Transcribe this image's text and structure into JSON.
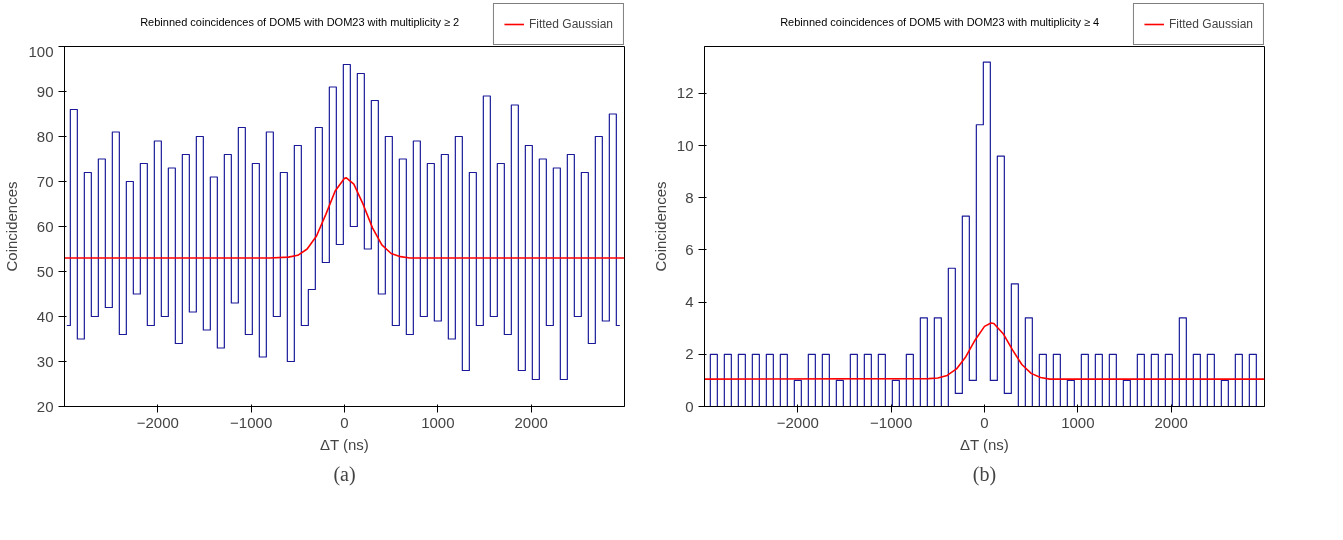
{
  "chart_data": [
    {
      "type": "step",
      "title": "Rebinned coincidences of DOM5 with DOM23 with multiplicity ≥ 2",
      "xlabel": "ΔT (ns)",
      "ylabel": "Coincidences",
      "annotations": [
        "(a)"
      ],
      "xlim": [
        -3000,
        3000
      ],
      "xticks": [
        -2000,
        -1000,
        0,
        1000,
        2000
      ],
      "ylim": [
        20,
        100
      ],
      "yticks": [
        20,
        30,
        40,
        50,
        60,
        70,
        80,
        90,
        100
      ],
      "grid": false,
      "legend": "top right",
      "series": [
        {
          "color": "#1a1a99",
          "x": [
            -2975,
            -2900,
            -2825,
            -2750,
            -2675,
            -2600,
            -2525,
            -2450,
            -2375,
            -2300,
            -2225,
            -2150,
            -2075,
            -2000,
            -1925,
            -1850,
            -1775,
            -1700,
            -1625,
            -1550,
            -1475,
            -1400,
            -1325,
            -1250,
            -1175,
            -1100,
            -1025,
            -950,
            -875,
            -800,
            -725,
            -650,
            -575,
            -500,
            -425,
            -350,
            -275,
            -200,
            -125,
            -50,
            25,
            100,
            175,
            250,
            325,
            400,
            475,
            550,
            625,
            700,
            775,
            850,
            925,
            1000,
            1075,
            1150,
            1225,
            1300,
            1375,
            1450,
            1525,
            1600,
            1675,
            1750,
            1825,
            1900,
            1975,
            2050,
            2125,
            2200,
            2275,
            2350,
            2425,
            2500,
            2575,
            2650,
            2725,
            2800,
            2875,
            2950
          ],
          "values": [
            38,
            86,
            35,
            72,
            40,
            75,
            42,
            81,
            36,
            70,
            45,
            74,
            38,
            79,
            40,
            73,
            34,
            76,
            41,
            80,
            37,
            71,
            33,
            76,
            43,
            82,
            36,
            74,
            31,
            81,
            40,
            72,
            30,
            78,
            38,
            46,
            82,
            52,
            91,
            56,
            96,
            60,
            94,
            55,
            88,
            45,
            80,
            38,
            75,
            36,
            79,
            40,
            74,
            39,
            76,
            35,
            80,
            28,
            72,
            38,
            89,
            40,
            74,
            36,
            87,
            28,
            78,
            26,
            75,
            38,
            73,
            26,
            76,
            40,
            72,
            34,
            80,
            39,
            85,
            38
          ]
        },
        {
          "type": "line",
          "name": "Fitted Gaussian",
          "color": "#ff0000",
          "x": [
            -3000,
            -800,
            -600,
            -500,
            -400,
            -300,
            -200,
            -100,
            0,
            20,
            100,
            200,
            300,
            400,
            500,
            600,
            700,
            3000
          ],
          "values": [
            53,
            53,
            53.2,
            53.6,
            55.0,
            57.9,
            62.7,
            67.9,
            70.7,
            70.8,
            69.4,
            64.9,
            59.7,
            55.9,
            54.0,
            53.3,
            53,
            53
          ]
        }
      ]
    },
    {
      "type": "step",
      "title": "Rebinned coincidences of DOM5 with DOM23 with multiplicity ≥ 4",
      "xlabel": "ΔT (ns)",
      "ylabel": "Coincidences",
      "annotations": [
        "(b)"
      ],
      "xlim": [
        -3000,
        3000
      ],
      "xticks": [
        -2000,
        -1000,
        0,
        1000,
        2000
      ],
      "ylim": [
        0,
        13.8
      ],
      "yticks": [
        0,
        2,
        4,
        6,
        8,
        10,
        12
      ],
      "grid": false,
      "legend": "top right",
      "series": [
        {
          "color": "#1a1a99",
          "x": [
            -2975,
            -2900,
            -2825,
            -2750,
            -2675,
            -2600,
            -2525,
            -2450,
            -2375,
            -2300,
            -2225,
            -2150,
            -2075,
            -2000,
            -1925,
            -1850,
            -1775,
            -1700,
            -1625,
            -1550,
            -1475,
            -1400,
            -1325,
            -1250,
            -1175,
            -1100,
            -1025,
            -950,
            -875,
            -800,
            -725,
            -650,
            -575,
            -500,
            -425,
            -350,
            -275,
            -200,
            -125,
            -50,
            25,
            100,
            175,
            250,
            325,
            400,
            475,
            550,
            625,
            700,
            775,
            850,
            925,
            1000,
            1075,
            1150,
            1225,
            1300,
            1375,
            1450,
            1525,
            1600,
            1675,
            1750,
            1825,
            1900,
            1975,
            2050,
            2125,
            2200,
            2275,
            2350,
            2425,
            2500,
            2575,
            2650,
            2725,
            2800,
            2875,
            2950
          ],
          "values": [
            0,
            2,
            0,
            2,
            0,
            2,
            0,
            2,
            0,
            2,
            0,
            2,
            0,
            1,
            0,
            2,
            0,
            2,
            0,
            1,
            0,
            2,
            0,
            2,
            0,
            2,
            0,
            1,
            0,
            2,
            0,
            3.4,
            0,
            3.4,
            0,
            5.3,
            0.5,
            7.3,
            1,
            10.8,
            13.2,
            1,
            9.6,
            0.5,
            4.7,
            0,
            3.4,
            0,
            2,
            0,
            2,
            0,
            1,
            0,
            2,
            0,
            2,
            0,
            2,
            0,
            1,
            0,
            2,
            0,
            2,
            0,
            2,
            0,
            3.4,
            0,
            2,
            0,
            2,
            0,
            1,
            0,
            2,
            0,
            2,
            0
          ]
        },
        {
          "type": "line",
          "name": "Fitted Gaussian",
          "color": "#ff0000",
          "x": [
            -3000,
            -600,
            -500,
            -400,
            -300,
            -200,
            -100,
            0,
            70,
            100,
            200,
            300,
            400,
            500,
            600,
            700,
            3000
          ],
          "values": [
            1.05,
            1.07,
            1.09,
            1.19,
            1.44,
            1.91,
            2.55,
            3.07,
            3.2,
            3.18,
            2.79,
            2.17,
            1.61,
            1.27,
            1.11,
            1.05,
            1.05
          ]
        }
      ]
    }
  ]
}
